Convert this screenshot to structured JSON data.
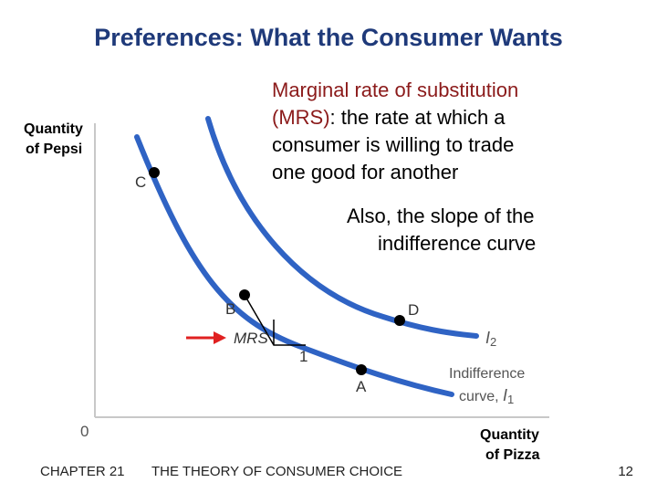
{
  "slide": {
    "title": "Preferences:  What the Consumer Wants",
    "definition": {
      "term": "Marginal rate of substitution",
      "line2_term": "(MRS)",
      "line2_rest": ":  the rate at which a",
      "line3": "consumer is willing to trade",
      "line4": "one good for another"
    },
    "also": {
      "line1": "Also, the slope of the",
      "line2": "indifference curve"
    }
  },
  "diagram": {
    "y_axis_label_line1": "Quantity",
    "y_axis_label_line2": "of Pepsi",
    "x_axis_label_line1": "Quantity",
    "x_axis_label_line2": "of Pizza",
    "origin": "0",
    "points": {
      "c": "C",
      "b": "B",
      "d": "D",
      "a": "A"
    },
    "mrs_label": "MRS",
    "run_label": "1",
    "curve2_label": "I",
    "curve2_sub": "2",
    "curve1_label_line1": "Indifference",
    "curve1_label_line2": "curve, ",
    "curve1_label_I": "I",
    "curve1_sub": "1",
    "curve_color": "#2f63c4",
    "arrow_color": "#e02020"
  },
  "footer": {
    "chapter": "CHAPTER 21",
    "subject": "THE THEORY OF CONSUMER CHOICE",
    "page": "12"
  }
}
